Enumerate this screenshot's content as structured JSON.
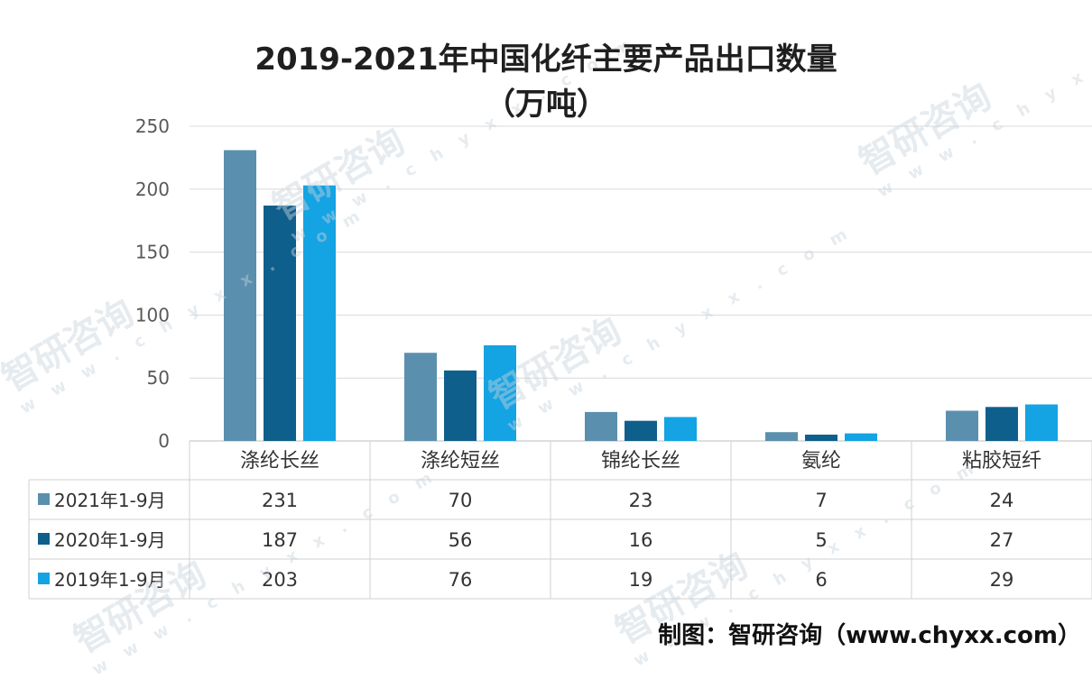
{
  "title_line1": "2019-2021年中国化纤主要产品出口数量",
  "title_line2": "（万吨）",
  "source": "制图：智研咨询（www.chyxx.com）",
  "watermark": {
    "text": "智研咨询",
    "url": "w w w . c h y x x . c o m"
  },
  "chart_data": {
    "type": "bar",
    "title": "2019-2021年中国化纤主要产品出口数量（万吨）",
    "categories": [
      "涤纶长丝",
      "涤纶短丝",
      "锦纶长丝",
      "氨纶",
      "粘胶短纤"
    ],
    "series": [
      {
        "name": "2021年1-9月",
        "color": "#5b8fae",
        "values": [
          231,
          70,
          23,
          7,
          24
        ]
      },
      {
        "name": "2020年1-9月",
        "color": "#0f5f8c",
        "values": [
          187,
          56,
          16,
          5,
          27
        ]
      },
      {
        "name": "2019年1-9月",
        "color": "#14a3e3",
        "values": [
          203,
          76,
          19,
          6,
          29
        ]
      }
    ],
    "ylim": [
      0,
      250
    ],
    "yticks": [
      0,
      50,
      100,
      150,
      200,
      250
    ],
    "grid": true,
    "legend": "data-table"
  }
}
